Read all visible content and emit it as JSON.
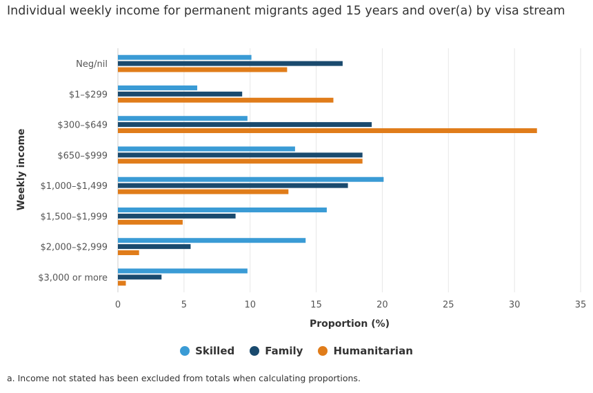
{
  "chart_data": {
    "type": "bar",
    "orientation": "horizontal",
    "title": "Individual weekly income for permanent migrants aged 15 years and over(a) by visa stream",
    "xlabel": "Proportion (%)",
    "ylabel": "Weekly income",
    "xlim": [
      0,
      35
    ],
    "x_ticks": [
      "0",
      "5",
      "10",
      "15",
      "20",
      "25",
      "30",
      "35"
    ],
    "grid": "vertical",
    "legend_position": "bottom",
    "categories": [
      "Neg/nil",
      "$1–$299",
      "$300–$649",
      "$650–$999",
      "$1,000–$1,499",
      "$1,500–$1,999",
      "$2,000–$2,999",
      "$3,000 or more"
    ],
    "series": [
      {
        "name": "Skilled",
        "color": "#3a9bd5",
        "values": [
          10.1,
          6.0,
          9.8,
          13.4,
          20.1,
          15.8,
          14.2,
          9.8
        ]
      },
      {
        "name": "Family",
        "color": "#1a4a6e",
        "values": [
          17.0,
          9.4,
          19.2,
          18.5,
          17.4,
          8.9,
          5.5,
          3.3
        ]
      },
      {
        "name": "Humanitarian",
        "color": "#e07c1a",
        "values": [
          12.8,
          16.3,
          31.7,
          18.5,
          12.9,
          4.9,
          1.6,
          0.6
        ]
      }
    ],
    "footnote": "a. Income not stated has been excluded from totals when calculating proportions."
  }
}
